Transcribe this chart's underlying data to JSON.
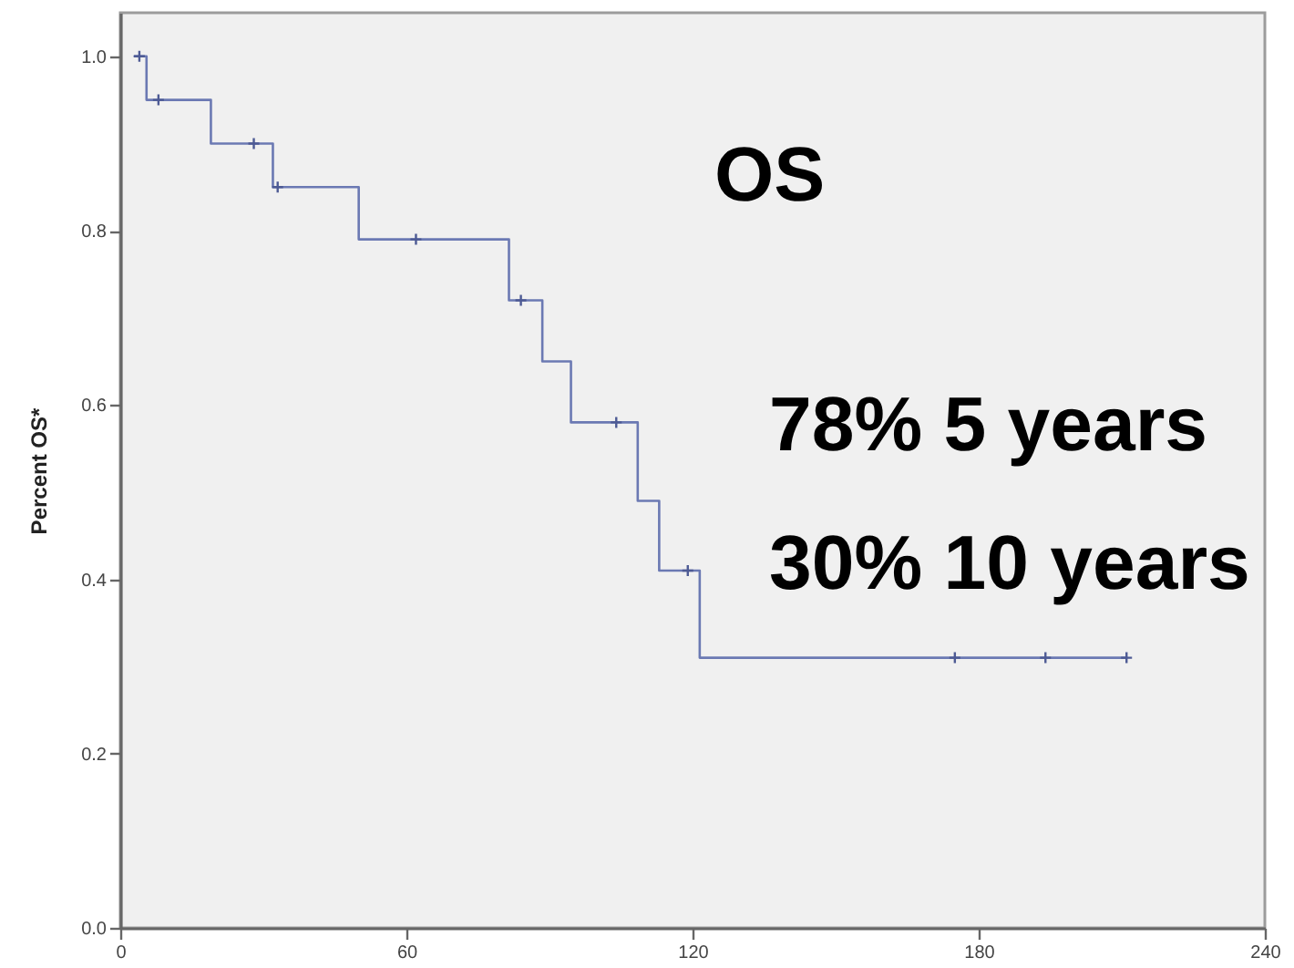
{
  "chart_data": {
    "type": "step",
    "ylabel": "Percent OS*",
    "xlim": [
      0,
      240
    ],
    "xticks": [
      0,
      60,
      120,
      180,
      240
    ],
    "ylim": [
      0,
      1.05
    ],
    "yticks": [
      {
        "value": 0,
        "label": "0.0"
      },
      0.2,
      0.4,
      0.6,
      0.8,
      {
        "value": 1,
        "label": "1.0"
      }
    ],
    "series": [
      {
        "color": "#6b79b3",
        "x": [
          3,
          5.5,
          19,
          32,
          50,
          81.5,
          88.5,
          94.5,
          108.5,
          113,
          121.5,
          211
        ],
        "values": [
          1,
          0.95,
          0.9,
          0.85,
          0.79,
          0.72,
          0.65,
          0.58,
          0.49,
          0.41,
          0.31,
          0.31
        ]
      },
      {
        "type": "scatter",
        "marker": "cross",
        "color": "#4d5a94",
        "x": [
          4,
          8,
          28,
          33,
          62,
          84,
          104,
          119,
          175,
          194,
          211
        ],
        "values": [
          1,
          0.95,
          0.9,
          0.85,
          0.79,
          0.72,
          0.58,
          0.41,
          0.31,
          0.31,
          0.31
        ]
      }
    ],
    "annotations": [
      "OS",
      "78% 5 years",
      "30% 10 years"
    ]
  }
}
